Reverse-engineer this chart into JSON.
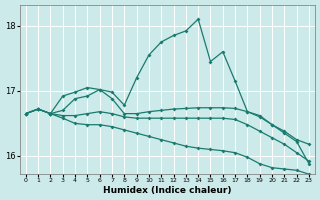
{
  "background_color": "#cceaea",
  "line_color": "#1a7a6e",
  "grid_color": "#ffffff",
  "xlabel": "Humidex (Indice chaleur)",
  "ylim": [
    15.72,
    18.32
  ],
  "xlim": [
    -0.5,
    23.5
  ],
  "yticks": [
    16,
    17,
    18
  ],
  "xticks": [
    0,
    1,
    2,
    3,
    4,
    5,
    6,
    7,
    8,
    9,
    10,
    11,
    12,
    13,
    14,
    15,
    16,
    17,
    18,
    19,
    20,
    21,
    22,
    23
  ],
  "s1_x": [
    0,
    1,
    2,
    3,
    4,
    5,
    6,
    7,
    8,
    9,
    10,
    11,
    12,
    13,
    14,
    15,
    16,
    17,
    18,
    19,
    20,
    21,
    22,
    23
  ],
  "s1_y": [
    16.65,
    16.72,
    16.65,
    16.92,
    16.98,
    17.05,
    17.02,
    16.98,
    16.78,
    17.2,
    17.55,
    17.75,
    17.85,
    17.92,
    18.1,
    17.45,
    17.6,
    17.15,
    16.68,
    16.62,
    16.48,
    16.35,
    16.22,
    15.88
  ],
  "s2_x": [
    0,
    1,
    2,
    3,
    4,
    5,
    6,
    7,
    8,
    9,
    10,
    11,
    12,
    13,
    14,
    15,
    16,
    17,
    18,
    19,
    20,
    21,
    22,
    23
  ],
  "s2_y": [
    16.65,
    16.72,
    16.65,
    16.7,
    16.88,
    16.92,
    17.02,
    16.88,
    16.65,
    16.65,
    16.68,
    16.7,
    16.72,
    16.73,
    16.74,
    16.74,
    16.74,
    16.73,
    16.68,
    16.6,
    16.48,
    16.38,
    16.25,
    16.18
  ],
  "s3_x": [
    0,
    1,
    2,
    3,
    4,
    5,
    6,
    7,
    8,
    9,
    10,
    11,
    12,
    13,
    14,
    15,
    16,
    17,
    18,
    19,
    20,
    21,
    22,
    23
  ],
  "s3_y": [
    16.65,
    16.72,
    16.65,
    16.62,
    16.62,
    16.65,
    16.68,
    16.65,
    16.6,
    16.58,
    16.58,
    16.58,
    16.58,
    16.58,
    16.58,
    16.58,
    16.58,
    16.56,
    16.48,
    16.38,
    16.28,
    16.18,
    16.05,
    15.92
  ],
  "s4_x": [
    0,
    1,
    2,
    3,
    4,
    5,
    6,
    7,
    8,
    9,
    10,
    11,
    12,
    13,
    14,
    15,
    16,
    17,
    18,
    19,
    20,
    21,
    22,
    23
  ],
  "s4_y": [
    16.65,
    16.72,
    16.65,
    16.58,
    16.5,
    16.48,
    16.48,
    16.45,
    16.4,
    16.35,
    16.3,
    16.25,
    16.2,
    16.15,
    16.12,
    16.1,
    16.08,
    16.05,
    15.98,
    15.88,
    15.82,
    15.8,
    15.78,
    15.72
  ]
}
